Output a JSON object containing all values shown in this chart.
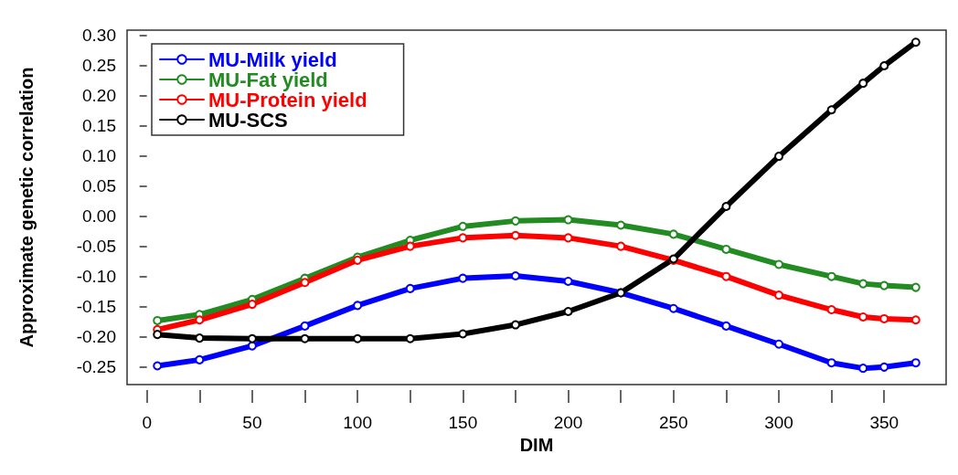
{
  "chart_data": {
    "type": "line",
    "xlabel": "DIM",
    "ylabel": "Approximate genetic correlation",
    "xlim": [
      -9.4,
      379.4
    ],
    "ylim": [
      -0.279,
      0.308
    ],
    "xticks": [
      0,
      {
        "value": 25,
        "label": null
      },
      50,
      {
        "value": 75,
        "label": null
      },
      100,
      {
        "value": 125,
        "label": null
      },
      150,
      {
        "value": 175,
        "label": null
      },
      200,
      {
        "value": 225,
        "label": null
      },
      250,
      {
        "value": 275,
        "label": null
      },
      300,
      {
        "value": 325,
        "label": null
      },
      350
    ],
    "yticks": [
      {
        "value": -0.25,
        "label": "-0.25"
      },
      {
        "value": -0.2,
        "label": "-0.20"
      },
      {
        "value": -0.15,
        "label": "-0.15"
      },
      {
        "value": -0.1,
        "label": "-0.10"
      },
      {
        "value": -0.05,
        "label": "-0.05"
      },
      {
        "value": 0,
        "label": "0.00"
      },
      {
        "value": 0.05,
        "label": "0.05"
      },
      {
        "value": 0.1,
        "label": "0.10"
      },
      {
        "value": 0.15,
        "label": "0.15"
      },
      {
        "value": 0.2,
        "label": "0.20"
      },
      {
        "value": 0.25,
        "label": "0.25"
      },
      {
        "value": 0.3,
        "label": "0.30"
      }
    ],
    "x": [
      5,
      25,
      50,
      75,
      100,
      125,
      150,
      175,
      200,
      225,
      250,
      275,
      300,
      325,
      340,
      350,
      365
    ],
    "grid": false,
    "legend": "top left",
    "marker": "circle",
    "line_style": "solid",
    "series": [
      {
        "name": "MU-Milk yield",
        "color": "#0000ff",
        "values": [
          -0.248,
          -0.238,
          -0.215,
          -0.182,
          -0.148,
          -0.12,
          -0.103,
          -0.099,
          -0.108,
          -0.127,
          -0.153,
          -0.182,
          -0.212,
          -0.243,
          -0.252,
          -0.25,
          -0.243
        ]
      },
      {
        "name": "MU-Fat yield",
        "color": "#228b22",
        "values": [
          -0.173,
          -0.163,
          -0.138,
          -0.103,
          -0.068,
          -0.04,
          -0.017,
          -0.008,
          -0.006,
          -0.015,
          -0.03,
          -0.055,
          -0.08,
          -0.1,
          -0.112,
          -0.115,
          -0.118
        ]
      },
      {
        "name": "MU-Protein yield",
        "color": "#ff0000",
        "values": [
          -0.188,
          -0.172,
          -0.146,
          -0.11,
          -0.073,
          -0.05,
          -0.036,
          -0.032,
          -0.036,
          -0.05,
          -0.073,
          -0.1,
          -0.131,
          -0.155,
          -0.167,
          -0.17,
          -0.172
        ]
      },
      {
        "name": "MU-SCS",
        "color": "#000000",
        "values": [
          -0.196,
          -0.202,
          -0.203,
          -0.203,
          -0.203,
          -0.203,
          -0.195,
          -0.18,
          -0.158,
          -0.127,
          -0.071,
          0.016,
          0.099,
          0.176,
          0.22,
          0.249,
          0.288
        ]
      }
    ]
  }
}
